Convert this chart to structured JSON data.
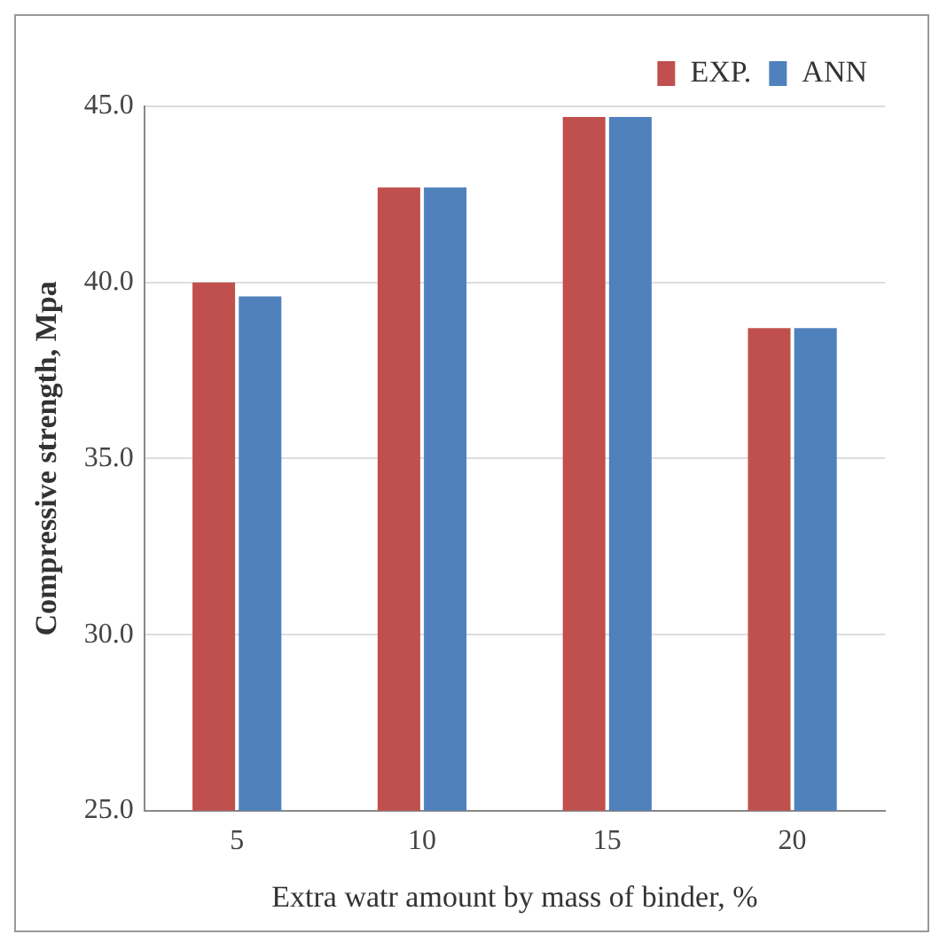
{
  "chart_data": {
    "type": "bar",
    "xlabel": "Extra watr amount by mass of binder, %",
    "ylabel": "Compressive strength, Mpa",
    "categories": [
      "5",
      "10",
      "15",
      "20"
    ],
    "series": [
      {
        "name": "EXP.",
        "color": "#c0504d",
        "values": [
          40.0,
          42.7,
          44.7,
          38.7
        ]
      },
      {
        "name": "ANN",
        "color": "#4f81bd",
        "values": [
          39.6,
          42.7,
          44.7,
          38.7
        ]
      }
    ],
    "ylim": [
      25,
      45
    ],
    "yticks": [
      {
        "value": 25,
        "label": "25.0"
      },
      {
        "value": 30,
        "label": "30.0"
      },
      {
        "value": 35,
        "label": "35.0"
      },
      {
        "value": 40,
        "label": "40.0"
      },
      {
        "value": 45,
        "label": "45.0"
      }
    ],
    "grid": "y",
    "legend": "top right"
  }
}
